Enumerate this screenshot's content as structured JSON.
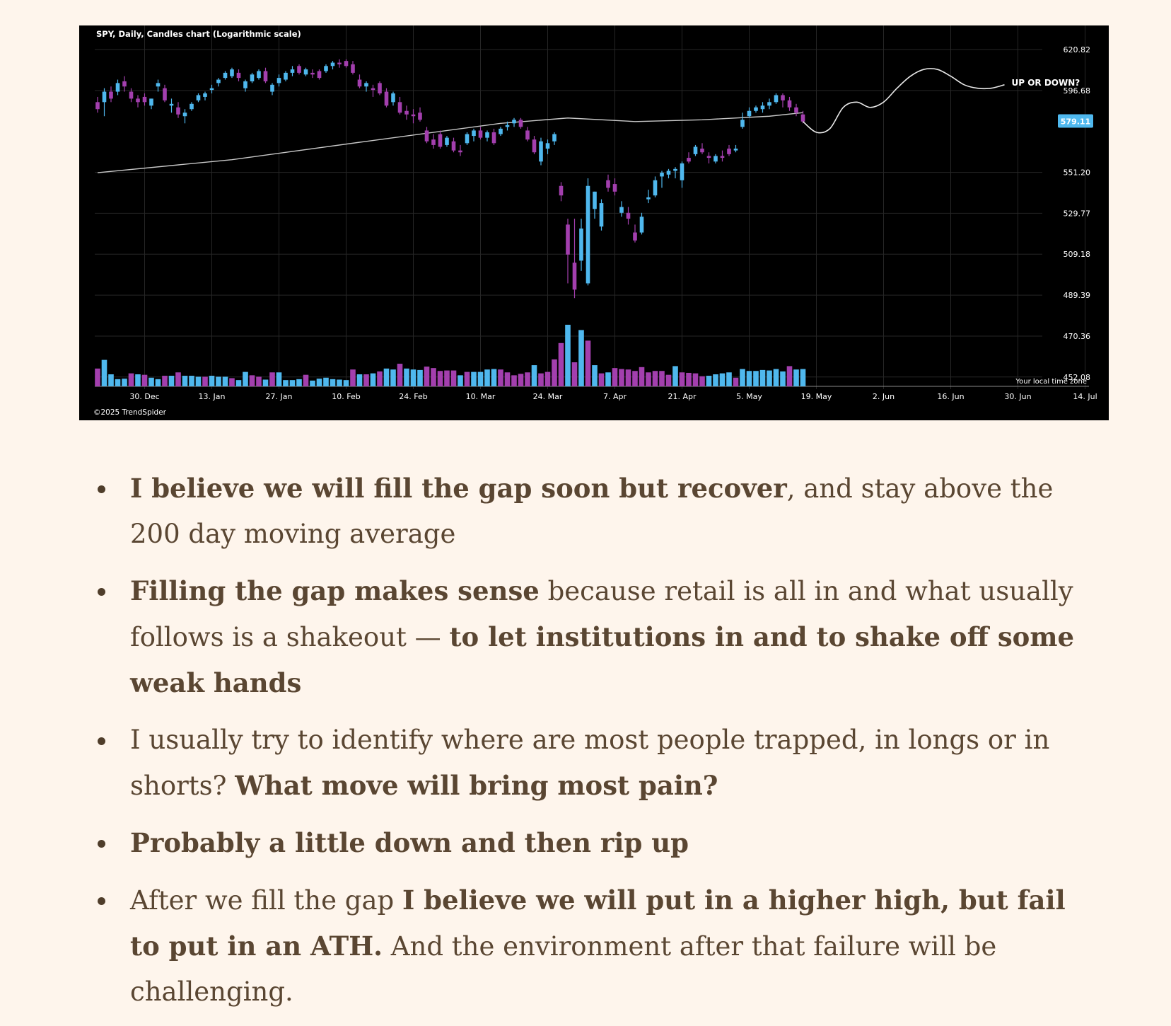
{
  "colors": {
    "background": "#fef5ec",
    "chart_bg": "#000000",
    "bull": "#4fb8ee",
    "bear": "#a33fae",
    "ma_line": "#c8c8c8",
    "text": "#5a4632"
  },
  "chart_data": {
    "type": "candlestick",
    "title": "SPY, Daily, Candles chart (Logarithmic scale)",
    "copyright": "©2025 TrendSpider",
    "timezone_label": "Your local time zone",
    "scale": "log",
    "grid": true,
    "y_ticks": [
      620.82,
      596.68,
      551.2,
      529.77,
      509.18,
      489.39,
      470.36,
      452.08
    ],
    "y_tick_labels": [
      "620.82",
      "596.68",
      "551.20",
      "529.77",
      "509.18",
      "489.39",
      "470.36",
      "452.08"
    ],
    "ylim": [
      448,
      632
    ],
    "x_tick_labels": [
      "30. Dec",
      "13. Jan",
      "27. Jan",
      "10. Feb",
      "24. Feb",
      "10. Mar",
      "24. Mar",
      "7. Apr",
      "21. Apr",
      "5. May",
      "19. May",
      "2. Jun",
      "16. Jun",
      "30. Jun",
      "14. Jul"
    ],
    "x_tick_index": [
      7,
      17,
      27,
      37,
      47,
      57,
      67,
      77,
      87,
      97,
      107,
      117,
      127,
      137,
      147
    ],
    "xlim": [
      0,
      152
    ],
    "last_price": "579.11",
    "annotation": "UP OR DOWN?",
    "candles": [
      [
        0,
        590,
        593,
        584,
        586
      ],
      [
        1,
        590,
        598,
        582,
        596
      ],
      [
        2,
        596,
        599,
        590,
        592
      ],
      [
        3,
        596,
        603,
        594,
        601
      ],
      [
        4,
        602,
        605,
        596,
        599
      ],
      [
        5,
        596,
        598,
        590,
        592
      ],
      [
        6,
        592,
        594,
        587,
        590
      ],
      [
        7,
        593,
        595,
        588,
        590
      ],
      [
        8,
        588,
        592,
        586,
        592
      ],
      [
        9,
        599,
        603,
        596,
        601
      ],
      [
        10,
        598,
        600,
        590,
        591
      ],
      [
        11,
        588,
        592,
        584,
        589
      ],
      [
        12,
        587,
        590,
        581,
        583
      ],
      [
        13,
        582,
        586,
        578,
        584
      ],
      [
        14,
        586,
        590,
        585,
        589
      ],
      [
        15,
        591,
        595,
        590,
        594
      ],
      [
        16,
        593,
        596,
        591,
        595
      ],
      [
        17,
        597,
        600,
        595,
        598
      ],
      [
        18,
        601,
        604,
        599,
        603
      ],
      [
        19,
        604,
        608,
        603,
        607
      ],
      [
        20,
        605,
        610,
        604,
        609
      ],
      [
        21,
        607,
        609,
        602,
        604
      ],
      [
        22,
        598,
        603,
        596,
        602
      ],
      [
        23,
        602,
        607,
        601,
        606
      ],
      [
        24,
        604,
        609,
        603,
        608
      ],
      [
        25,
        608,
        610,
        601,
        602
      ],
      [
        26,
        596,
        601,
        594,
        600
      ],
      [
        27,
        601,
        606,
        599,
        604
      ],
      [
        28,
        603,
        608,
        602,
        607
      ],
      [
        29,
        607,
        611,
        605,
        609
      ],
      [
        30,
        611,
        612,
        606,
        607
      ],
      [
        31,
        606,
        610,
        605,
        609
      ],
      [
        32,
        607,
        609,
        604,
        606
      ],
      [
        33,
        608,
        609,
        603,
        604
      ],
      [
        34,
        608,
        612,
        607,
        611
      ],
      [
        35,
        611,
        614,
        609,
        613
      ],
      [
        36,
        613,
        615,
        610,
        612
      ],
      [
        37,
        614,
        615,
        610,
        611
      ],
      [
        38,
        612,
        614,
        606,
        607
      ],
      [
        39,
        603,
        606,
        598,
        599
      ],
      [
        40,
        599,
        602,
        596,
        601
      ],
      [
        41,
        598,
        600,
        593,
        597
      ],
      [
        42,
        601,
        602,
        594,
        595
      ],
      [
        43,
        596,
        598,
        587,
        588
      ],
      [
        44,
        590,
        596,
        588,
        595
      ],
      [
        45,
        590,
        593,
        583,
        584
      ],
      [
        46,
        585,
        588,
        580,
        583
      ],
      [
        47,
        583,
        586,
        578,
        582
      ],
      [
        48,
        584,
        587,
        579,
        580
      ],
      [
        49,
        574,
        576,
        567,
        568
      ],
      [
        50,
        569,
        572,
        564,
        566
      ],
      [
        51,
        572,
        574,
        564,
        565
      ],
      [
        52,
        566,
        571,
        565,
        570
      ],
      [
        53,
        568,
        570,
        562,
        563
      ],
      [
        54,
        563,
        566,
        560,
        562
      ],
      [
        55,
        567,
        573,
        566,
        572
      ],
      [
        56,
        571,
        575,
        568,
        574
      ],
      [
        57,
        574,
        576,
        569,
        570
      ],
      [
        58,
        570,
        574,
        568,
        573
      ],
      [
        59,
        573,
        575,
        566,
        567
      ],
      [
        60,
        572,
        576,
        571,
        575
      ],
      [
        61,
        576,
        579,
        574,
        577
      ],
      [
        62,
        578,
        581,
        576,
        580
      ],
      [
        63,
        580,
        581,
        575,
        576
      ],
      [
        64,
        574,
        576,
        568,
        569
      ],
      [
        65,
        569,
        571,
        561,
        562
      ],
      [
        66,
        557,
        570,
        555,
        568
      ],
      [
        67,
        564,
        569,
        561,
        567
      ],
      [
        68,
        568,
        573,
        566,
        572
      ],
      [
        69,
        544,
        546,
        536,
        539
      ],
      [
        70,
        524,
        527,
        495,
        509
      ],
      [
        71,
        505,
        527,
        488,
        492
      ],
      [
        72,
        506,
        527,
        501,
        522
      ],
      [
        73,
        495,
        548,
        494,
        544
      ],
      [
        74,
        532,
        541,
        527,
        541
      ],
      [
        75,
        523,
        537,
        521,
        535
      ],
      [
        76,
        547,
        550,
        541,
        543
      ],
      [
        77,
        545,
        548,
        539,
        541
      ],
      [
        78,
        530,
        536,
        528,
        533
      ],
      [
        79,
        530,
        533,
        524,
        527
      ],
      [
        80,
        520,
        524,
        515,
        516
      ],
      [
        81,
        520,
        530,
        519,
        528
      ],
      [
        82,
        537,
        542,
        535,
        538
      ],
      [
        83,
        539,
        549,
        538,
        547
      ],
      [
        84,
        549,
        552,
        543,
        551
      ],
      [
        85,
        550,
        553,
        548,
        552
      ],
      [
        86,
        552,
        554,
        548,
        553
      ],
      [
        87,
        547,
        557,
        543,
        556
      ],
      [
        88,
        559,
        562,
        556,
        557
      ],
      [
        89,
        561,
        566,
        560,
        565
      ],
      [
        90,
        564,
        567,
        561,
        562
      ],
      [
        91,
        560,
        562,
        556,
        559
      ],
      [
        92,
        557,
        561,
        556,
        560
      ],
      [
        93,
        560,
        563,
        557,
        559
      ],
      [
        94,
        564,
        566,
        560,
        561
      ],
      [
        95,
        563,
        566,
        562,
        564
      ],
      [
        96,
        576,
        584,
        575,
        580
      ],
      [
        97,
        582,
        587,
        581,
        585
      ],
      [
        98,
        585,
        588,
        584,
        587
      ],
      [
        99,
        586,
        590,
        584,
        588
      ],
      [
        100,
        588,
        592,
        586,
        590
      ],
      [
        101,
        590,
        595,
        589,
        594
      ],
      [
        102,
        594,
        595,
        587,
        591
      ],
      [
        103,
        591,
        593,
        585,
        587
      ],
      [
        104,
        587,
        589,
        582,
        584
      ],
      [
        105,
        583,
        585,
        578,
        579
      ]
    ],
    "volumes": [
      [
        0,
        74,
        0
      ],
      [
        1,
        110,
        1
      ],
      [
        2,
        50,
        1
      ],
      [
        3,
        30,
        1
      ],
      [
        4,
        32,
        1
      ],
      [
        5,
        54,
        0
      ],
      [
        6,
        50,
        1
      ],
      [
        7,
        48,
        0
      ],
      [
        8,
        36,
        1
      ],
      [
        9,
        30,
        1
      ],
      [
        10,
        44,
        0
      ],
      [
        11,
        44,
        1
      ],
      [
        12,
        58,
        0
      ],
      [
        13,
        44,
        1
      ],
      [
        14,
        44,
        1
      ],
      [
        15,
        40,
        1
      ],
      [
        16,
        40,
        0
      ],
      [
        17,
        44,
        1
      ],
      [
        18,
        40,
        1
      ],
      [
        19,
        40,
        1
      ],
      [
        20,
        34,
        0
      ],
      [
        21,
        26,
        1
      ],
      [
        22,
        60,
        1
      ],
      [
        23,
        46,
        0
      ],
      [
        24,
        40,
        0
      ],
      [
        25,
        28,
        1
      ],
      [
        26,
        58,
        0
      ],
      [
        27,
        58,
        1
      ],
      [
        28,
        26,
        1
      ],
      [
        29,
        26,
        1
      ],
      [
        30,
        30,
        1
      ],
      [
        31,
        48,
        0
      ],
      [
        32,
        24,
        1
      ],
      [
        33,
        32,
        1
      ],
      [
        34,
        36,
        1
      ],
      [
        35,
        30,
        1
      ],
      [
        36,
        28,
        1
      ],
      [
        37,
        26,
        1
      ],
      [
        38,
        70,
        0
      ],
      [
        39,
        50,
        1
      ],
      [
        40,
        50,
        0
      ],
      [
        41,
        54,
        1
      ],
      [
        42,
        62,
        0
      ],
      [
        43,
        74,
        1
      ],
      [
        44,
        70,
        1
      ],
      [
        45,
        94,
        0
      ],
      [
        46,
        74,
        1
      ],
      [
        47,
        70,
        1
      ],
      [
        48,
        68,
        1
      ],
      [
        49,
        82,
        0
      ],
      [
        50,
        76,
        0
      ],
      [
        51,
        64,
        0
      ],
      [
        52,
        66,
        0
      ],
      [
        53,
        66,
        0
      ],
      [
        54,
        46,
        1
      ],
      [
        55,
        60,
        0
      ],
      [
        56,
        60,
        1
      ],
      [
        57,
        60,
        1
      ],
      [
        58,
        70,
        1
      ],
      [
        59,
        72,
        1
      ],
      [
        60,
        70,
        0
      ],
      [
        61,
        58,
        0
      ],
      [
        62,
        46,
        0
      ],
      [
        63,
        52,
        0
      ],
      [
        64,
        58,
        0
      ],
      [
        65,
        88,
        1
      ],
      [
        66,
        54,
        0
      ],
      [
        67,
        60,
        0
      ],
      [
        68,
        112,
        0
      ],
      [
        69,
        180,
        0
      ],
      [
        70,
        256,
        1
      ],
      [
        71,
        100,
        0
      ],
      [
        72,
        234,
        1
      ],
      [
        73,
        190,
        0
      ],
      [
        74,
        88,
        1
      ],
      [
        75,
        54,
        0
      ],
      [
        76,
        58,
        1
      ],
      [
        77,
        76,
        0
      ],
      [
        78,
        72,
        0
      ],
      [
        79,
        70,
        0
      ],
      [
        80,
        64,
        0
      ],
      [
        81,
        80,
        0
      ],
      [
        82,
        58,
        0
      ],
      [
        83,
        64,
        0
      ],
      [
        84,
        64,
        0
      ],
      [
        85,
        48,
        0
      ],
      [
        86,
        84,
        1
      ],
      [
        87,
        58,
        0
      ],
      [
        88,
        56,
        0
      ],
      [
        89,
        54,
        0
      ],
      [
        90,
        42,
        0
      ],
      [
        91,
        44,
        1
      ],
      [
        92,
        50,
        1
      ],
      [
        93,
        54,
        1
      ],
      [
        94,
        58,
        1
      ],
      [
        95,
        36,
        0
      ],
      [
        96,
        72,
        1
      ],
      [
        97,
        64,
        1
      ],
      [
        98,
        64,
        1
      ],
      [
        99,
        68,
        1
      ],
      [
        100,
        66,
        1
      ],
      [
        101,
        72,
        1
      ],
      [
        102,
        62,
        1
      ],
      [
        103,
        84,
        0
      ],
      [
        104,
        70,
        1
      ],
      [
        105,
        72,
        1
      ]
    ],
    "moving_average_200": [
      [
        0,
        551
      ],
      [
        20,
        558
      ],
      [
        40,
        568
      ],
      [
        60,
        578
      ],
      [
        70,
        581
      ],
      [
        80,
        579
      ],
      [
        90,
        580
      ],
      [
        100,
        582
      ],
      [
        105,
        584
      ]
    ],
    "projection": [
      [
        105,
        579
      ],
      [
        107,
        573
      ],
      [
        109,
        575
      ],
      [
        111,
        587
      ],
      [
        113,
        590
      ],
      [
        115,
        587
      ],
      [
        117,
        590
      ],
      [
        119,
        598
      ],
      [
        121,
        605
      ],
      [
        123,
        609
      ],
      [
        125,
        609
      ],
      [
        127,
        605
      ],
      [
        129,
        600
      ],
      [
        131,
        598
      ],
      [
        133,
        598
      ],
      [
        135,
        600
      ]
    ]
  },
  "notes": [
    {
      "parts": [
        {
          "bold": true,
          "text": "I believe we will fill the gap soon but recover"
        },
        {
          "bold": false,
          "text": ", and stay above the 200 day moving average"
        }
      ]
    },
    {
      "parts": [
        {
          "bold": true,
          "text": "Filling the gap makes sense"
        },
        {
          "bold": false,
          "text": " because retail is all in and what usually follows is a shakeout — "
        },
        {
          "bold": true,
          "text": "to let institutions in and to shake off some weak hands"
        }
      ]
    },
    {
      "parts": [
        {
          "bold": false,
          "text": "I usually try to identify where are most people trapped, in longs or in shorts? "
        },
        {
          "bold": true,
          "text": "What move will bring most pain?"
        }
      ]
    },
    {
      "parts": [
        {
          "bold": true,
          "text": "Probably a little down and then rip up"
        }
      ]
    },
    {
      "parts": [
        {
          "bold": false,
          "text": "After we fill the gap "
        },
        {
          "bold": true,
          "text": "I believe we will put in a higher high, but fail to put in an ATH."
        },
        {
          "bold": false,
          "text": " And the environment after that failure will be challenging."
        }
      ]
    }
  ]
}
